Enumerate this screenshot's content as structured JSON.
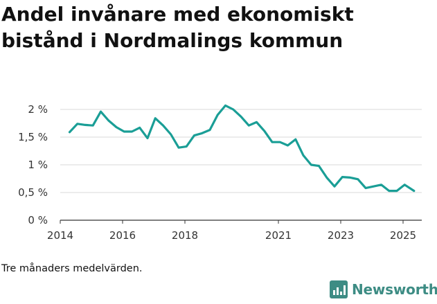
{
  "title": "Andel invånare med ekonomiskt bistånd i Nordmalings kommun",
  "note": "Tre månaders medelvärden.",
  "brand": {
    "name": "Newsworthy",
    "icon": "newsworthy-logo-icon",
    "color": "#3d8c84"
  },
  "chart_data": {
    "type": "line",
    "xlabel": "",
    "ylabel": "",
    "line_color": "#1a9e96",
    "grid": true,
    "xlim": [
      2014.0,
      2025.6
    ],
    "ylim": [
      0,
      2
    ],
    "y_ticks": [
      {
        "value": 0,
        "label": "0 %"
      },
      {
        "value": 0.5,
        "label": "0,5 %"
      },
      {
        "value": 1,
        "label": "1 %"
      },
      {
        "value": 1.5,
        "label": "1,5 %"
      },
      {
        "value": 2,
        "label": "2 %"
      }
    ],
    "x_ticks": [
      {
        "value": 2014,
        "label": "2014"
      },
      {
        "value": 2016,
        "label": "2016"
      },
      {
        "value": 2018,
        "label": "2018"
      },
      {
        "value": 2021,
        "label": "2021"
      },
      {
        "value": 2023,
        "label": "2023"
      },
      {
        "value": 2025,
        "label": "2025"
      }
    ],
    "series": [
      {
        "x": [
          2014.3,
          2014.55,
          2014.8,
          2015.05,
          2015.3,
          2015.55,
          2015.8,
          2016.05,
          2016.3,
          2016.55,
          2016.8,
          2017.05,
          2017.3,
          2017.55,
          2017.8,
          2018.05,
          2018.3,
          2018.55,
          2018.8,
          2019.05,
          2019.3,
          2019.55,
          2019.8,
          2020.05,
          2020.3,
          2020.55,
          2020.8,
          2021.05,
          2021.3,
          2021.55,
          2021.8,
          2022.05,
          2022.3,
          2022.55,
          2022.8,
          2023.05,
          2023.3,
          2023.55,
          2023.8,
          2024.05,
          2024.3,
          2024.55,
          2024.8,
          2025.05,
          2025.35
        ],
        "y": [
          1.59,
          1.74,
          1.72,
          1.71,
          1.96,
          1.8,
          1.68,
          1.6,
          1.6,
          1.67,
          1.48,
          1.84,
          1.71,
          1.55,
          1.31,
          1.33,
          1.53,
          1.57,
          1.63,
          1.9,
          2.07,
          2.0,
          1.87,
          1.71,
          1.77,
          1.61,
          1.41,
          1.41,
          1.35,
          1.46,
          1.17,
          1.0,
          0.98,
          0.77,
          0.61,
          0.78,
          0.77,
          0.74,
          0.58,
          0.61,
          0.64,
          0.53,
          0.53,
          0.64,
          0.53
        ]
      }
    ]
  }
}
